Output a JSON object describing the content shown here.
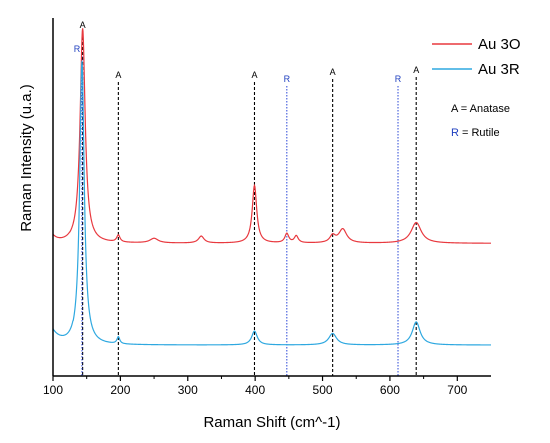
{
  "chart_data": {
    "type": "line",
    "title": "",
    "xlabel": "Raman Shift (cm^-1)",
    "ylabel": "Raman Intensity (u.a.)",
    "xlim": [
      100,
      750
    ],
    "xticks": [
      100,
      200,
      300,
      400,
      500,
      600,
      700
    ],
    "y_ticks_shown": false,
    "grid": false,
    "legend": {
      "placement": "top-right",
      "entries": [
        {
          "label": "Au 3O",
          "color": "#e8393f"
        },
        {
          "label": "Au 3R",
          "color": "#2ea8e0"
        }
      ]
    },
    "notes": [
      {
        "letter": "A",
        "text": " = Anatase",
        "letter_color": "#000000"
      },
      {
        "letter": "R",
        "text": " = Rutile",
        "letter_color": "#1f3fbf"
      }
    ],
    "reference_lines": [
      {
        "x": 144,
        "label": "A",
        "phase": "anatase"
      },
      {
        "x": 143,
        "label": "R",
        "phase": "rutile"
      },
      {
        "x": 197,
        "label": "A",
        "phase": "anatase"
      },
      {
        "x": 399,
        "label": "A",
        "phase": "anatase"
      },
      {
        "x": 447,
        "label": "R",
        "phase": "rutile"
      },
      {
        "x": 515,
        "label": "A",
        "phase": "anatase"
      },
      {
        "x": 612,
        "label": "R",
        "phase": "rutile"
      },
      {
        "x": 639,
        "label": "A",
        "phase": "anatase"
      }
    ],
    "series": [
      {
        "name": "Au 3O",
        "color": "#e8393f",
        "baseline": 0.47,
        "peaks": [
          {
            "x": 144,
            "height": 0.93,
            "width": 9
          },
          {
            "x": 197,
            "height": 0.03,
            "width": 6
          },
          {
            "x": 250,
            "height": 0.02,
            "width": 15
          },
          {
            "x": 320,
            "height": 0.03,
            "width": 10
          },
          {
            "x": 399,
            "height": 0.25,
            "width": 8
          },
          {
            "x": 447,
            "height": 0.04,
            "width": 7
          },
          {
            "x": 461,
            "height": 0.03,
            "width": 7
          },
          {
            "x": 515,
            "height": 0.03,
            "width": 10
          },
          {
            "x": 530,
            "height": 0.06,
            "width": 14
          },
          {
            "x": 639,
            "height": 0.09,
            "width": 18
          }
        ]
      },
      {
        "name": "Au 3R",
        "color": "#2ea8e0",
        "baseline": 0.03,
        "peaks": [
          {
            "x": 143,
            "height": 1.23,
            "width": 8
          },
          {
            "x": 197,
            "height": 0.03,
            "width": 5
          },
          {
            "x": 399,
            "height": 0.06,
            "width": 10
          },
          {
            "x": 515,
            "height": 0.05,
            "width": 14
          },
          {
            "x": 639,
            "height": 0.1,
            "width": 14
          }
        ]
      }
    ]
  }
}
